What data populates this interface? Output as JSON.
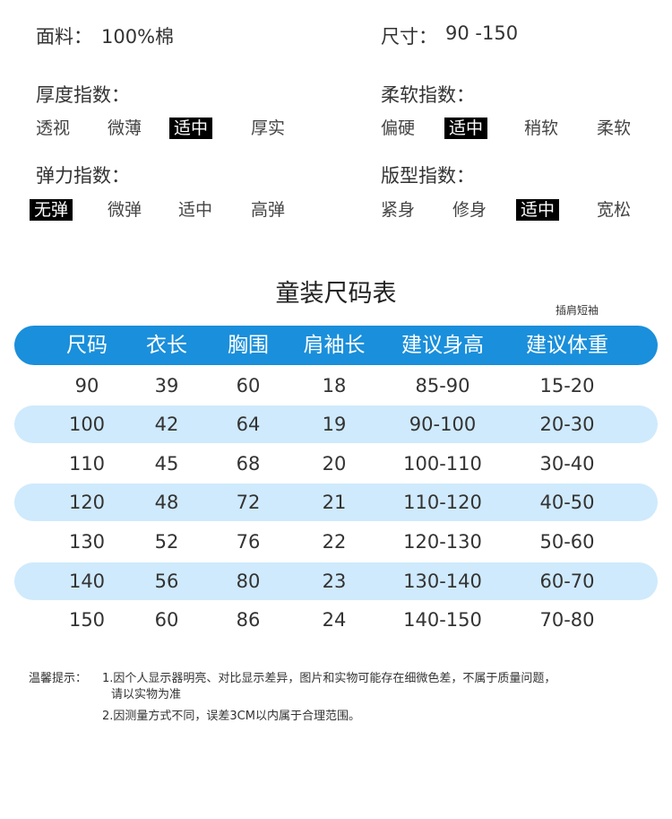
{
  "fabric": {
    "label": "面料：",
    "value": "100%棉"
  },
  "size": {
    "label": "尺寸：",
    "value": "90 -150"
  },
  "thickness": {
    "label": "厚度指数：",
    "options": [
      "透视",
      "微薄",
      "适中",
      "厚实"
    ],
    "selected": "适中"
  },
  "softness": {
    "label": "柔软指数：",
    "options": [
      "偏硬",
      "适中",
      "稍软",
      "柔软"
    ],
    "selected": "适中"
  },
  "elasticity": {
    "label": "弹力指数：",
    "options": [
      "无弹",
      "微弹",
      "适中",
      "高弹"
    ],
    "selected": "无弹"
  },
  "fit": {
    "label": "版型指数：",
    "options": [
      "紧身",
      "修身",
      "适中",
      "宽松"
    ],
    "selected": "适中"
  },
  "table": {
    "title": "童装尺码表",
    "note": "插肩短袖",
    "headers": [
      "尺码",
      "衣长",
      "胸围",
      "肩袖长",
      "建议身高",
      "建议体重"
    ],
    "rows": [
      [
        "90",
        "39",
        "60",
        "18",
        "85-90",
        "15-20"
      ],
      [
        "100",
        "42",
        "64",
        "19",
        "90-100",
        "20-30"
      ],
      [
        "110",
        "45",
        "68",
        "20",
        "100-110",
        "30-40"
      ],
      [
        "120",
        "48",
        "72",
        "21",
        "110-120",
        "40-50"
      ],
      [
        "130",
        "52",
        "76",
        "22",
        "120-130",
        "50-60"
      ],
      [
        "140",
        "56",
        "80",
        "23",
        "130-140",
        "60-70"
      ],
      [
        "150",
        "60",
        "86",
        "24",
        "140-150",
        "70-80"
      ]
    ]
  },
  "tips": {
    "label": "温馨提示：",
    "line1": "1.因个人显示器明亮、对比显示差异，图片和实物可能存在细微色差，不属于质量问题，",
    "line1b": "请以实物为准",
    "line2": "2.因测量方式不同，误差3CM以内属于合理范围。"
  },
  "colors": {
    "header": "#1a8fdb",
    "band": "#cfeafc",
    "selected_bg": "#000000"
  }
}
